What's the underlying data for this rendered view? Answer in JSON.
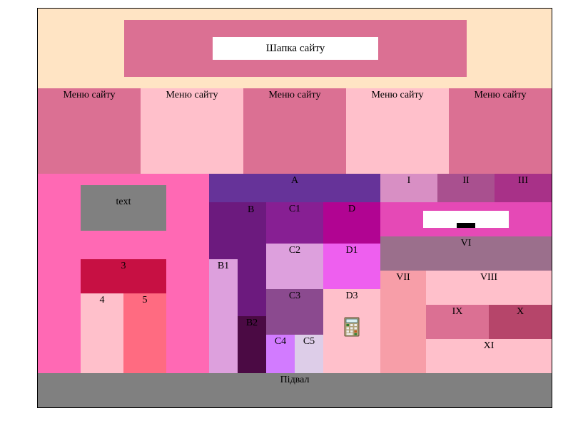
{
  "header": {
    "title": "Шапка сайту"
  },
  "menu": {
    "items": [
      {
        "label": "Меню сайту",
        "color": "#db7093"
      },
      {
        "label": "Меню сайту",
        "color": "#ffc0cb"
      },
      {
        "label": "Меню сайту",
        "color": "#db7093"
      },
      {
        "label": "Меню сайту",
        "color": "#ffc0cb"
      },
      {
        "label": "Меню сайту",
        "color": "#db7093"
      }
    ]
  },
  "left": {
    "text_block": "text",
    "block3": "3",
    "block4": "4",
    "block5": "5"
  },
  "middle": {
    "A": "A",
    "B": "B",
    "B1": "B1",
    "B2": "B2",
    "C1": "C1",
    "C2": "C2",
    "C3": "C3",
    "C4": "C4",
    "C5": "C5",
    "D": "D",
    "D1": "D1",
    "D3": "D3",
    "icon": "calculator-icon"
  },
  "right": {
    "I": "I",
    "II": "II",
    "III": "III",
    "VI": "VI",
    "VII": "VII",
    "VIII": "VIII",
    "IX": "IX",
    "X": "X",
    "XI": "XI"
  },
  "footer": {
    "label": "Підвал"
  },
  "colors": {
    "page_bg": "#ffe4c4",
    "palevioletred": "#db7093",
    "pink": "#ffc0cb",
    "hotpink": "#ff69b4",
    "gray": "#808080"
  }
}
